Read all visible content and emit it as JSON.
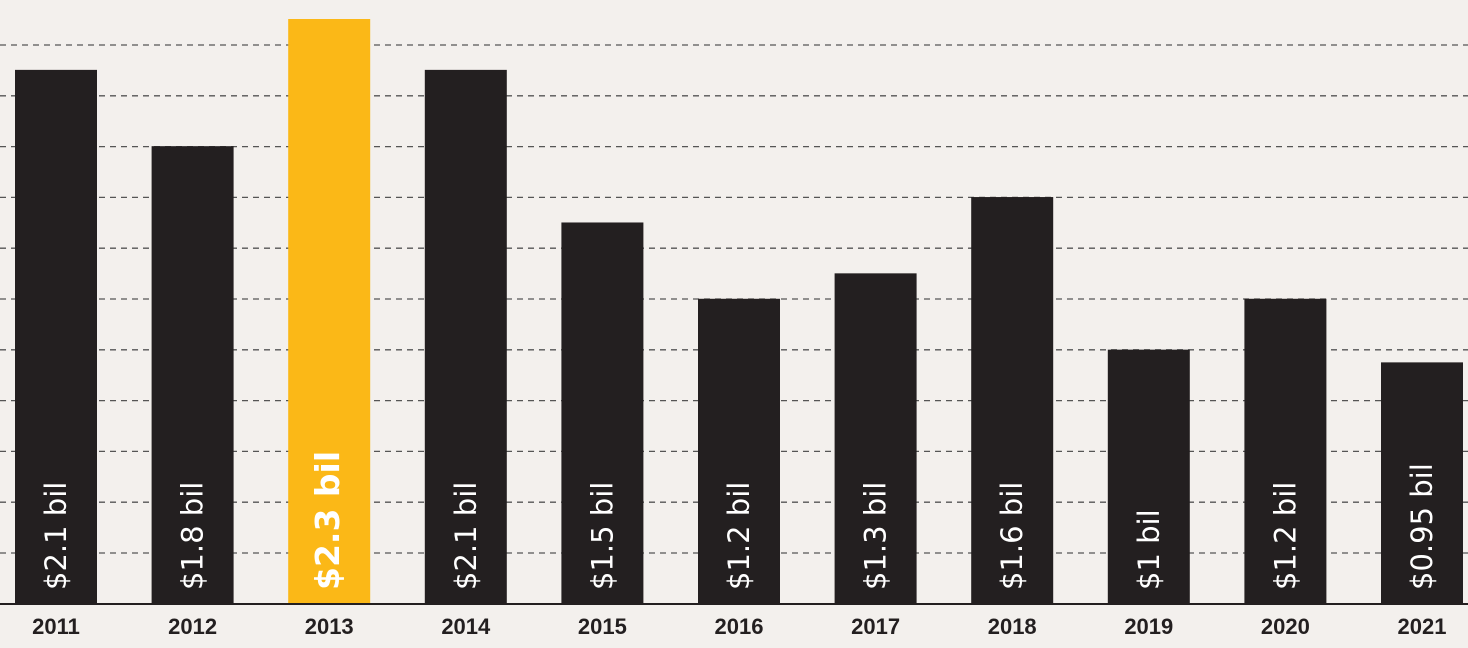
{
  "chart_data": {
    "type": "bar",
    "categories": [
      "2011",
      "2012",
      "2013",
      "2014",
      "2015",
      "2016",
      "2017",
      "2018",
      "2019",
      "2020",
      "2021"
    ],
    "values": [
      2.1,
      1.8,
      2.3,
      2.1,
      1.5,
      1.2,
      1.3,
      1.6,
      1.0,
      1.2,
      0.95
    ],
    "data_labels": [
      "$2.1 bil",
      "$1.8 bil",
      "$2.3 bil",
      "$2.1 bil",
      "$1.5 bil",
      "$1.2 bil",
      "$1.3 bil",
      "$1.6 bil",
      "$1 bil",
      "$1.2 bil",
      "$0.95 bil"
    ],
    "highlight_index": 2,
    "colors": {
      "bar": "#231f20",
      "highlight": "#fbb817",
      "background": "#f3f0ed",
      "label": "#ffffff"
    },
    "ylim": [
      0,
      2.3
    ],
    "grid": true,
    "legend": "none",
    "title": "",
    "xlabel": "",
    "ylabel": ""
  }
}
